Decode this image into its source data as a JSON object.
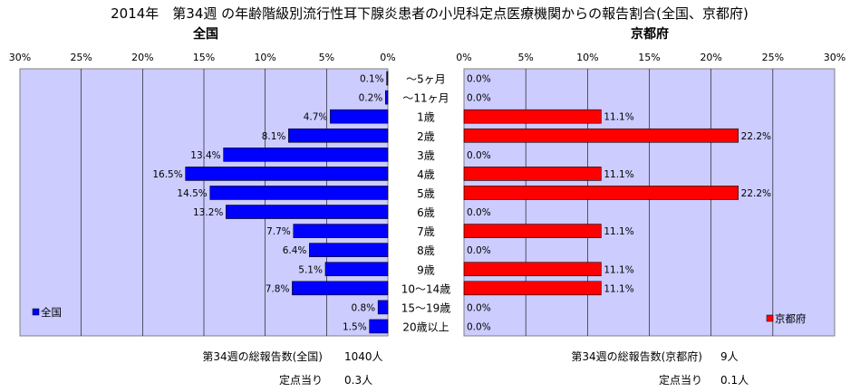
{
  "title": "2014年　第34週 の年齢階級別流行性耳下腺炎患者の小児科定点医療機関からの報告割合(全国、京都府)",
  "colors": {
    "plot_bg": "#ccccff",
    "national_bar": "#0000ff",
    "kyoto_bar": "#ff0000",
    "bar_edge": "#000000",
    "grid": "#000000"
  },
  "chart_data": {
    "type": "bar",
    "orientation": "horizontal",
    "categories": [
      "〜5ヶ月",
      "〜11ヶ月",
      "1歳",
      "2歳",
      "3歳",
      "4歳",
      "5歳",
      "6歳",
      "7歳",
      "8歳",
      "9歳",
      "10〜14歳",
      "15〜19歳",
      "20歳以上"
    ],
    "panels": [
      {
        "title": "全国",
        "legend": "全国",
        "legend_position": "bottom-left",
        "direction": "left",
        "xlim": [
          0,
          30
        ],
        "ticks": [
          "30%",
          "25%",
          "20%",
          "15%",
          "10%",
          "5%",
          "0%"
        ],
        "values": [
          0.1,
          0.2,
          4.7,
          8.1,
          13.4,
          16.5,
          14.5,
          13.2,
          7.7,
          6.4,
          5.1,
          7.8,
          0.8,
          1.5
        ],
        "labels": [
          "0.1%",
          "0.2%",
          "4.7%",
          "8.1%",
          "13.4%",
          "16.5%",
          "14.5%",
          "13.2%",
          "7.7%",
          "6.4%",
          "5.1%",
          "7.8%",
          "0.8%",
          "1.5%"
        ],
        "grid": true
      },
      {
        "title": "京都府",
        "legend": "京都府",
        "legend_position": "bottom-right",
        "direction": "right",
        "xlim": [
          0,
          30
        ],
        "ticks": [
          "0%",
          "5%",
          "10%",
          "15%",
          "20%",
          "25%",
          "30%"
        ],
        "values": [
          0,
          0,
          11.1,
          22.2,
          0,
          11.1,
          22.2,
          0,
          11.1,
          0,
          11.1,
          11.1,
          0,
          0
        ],
        "labels": [
          "0.0%",
          "0.0%",
          "11.1%",
          "22.2%",
          "0.0%",
          "11.1%",
          "22.2%",
          "0.0%",
          "11.1%",
          "0.0%",
          "11.1%",
          "11.1%",
          "0.0%",
          "0.0%"
        ],
        "grid": true
      }
    ]
  },
  "footer": {
    "national": {
      "total_label": "第34週の総報告数(全国)",
      "total_value": "1040人",
      "per_label": "定点当り",
      "per_value": "0.3人"
    },
    "kyoto": {
      "total_label": "第34週の総報告数(京都府)",
      "total_value": "9人",
      "per_label": "定点当り",
      "per_value": "0.1人"
    }
  }
}
